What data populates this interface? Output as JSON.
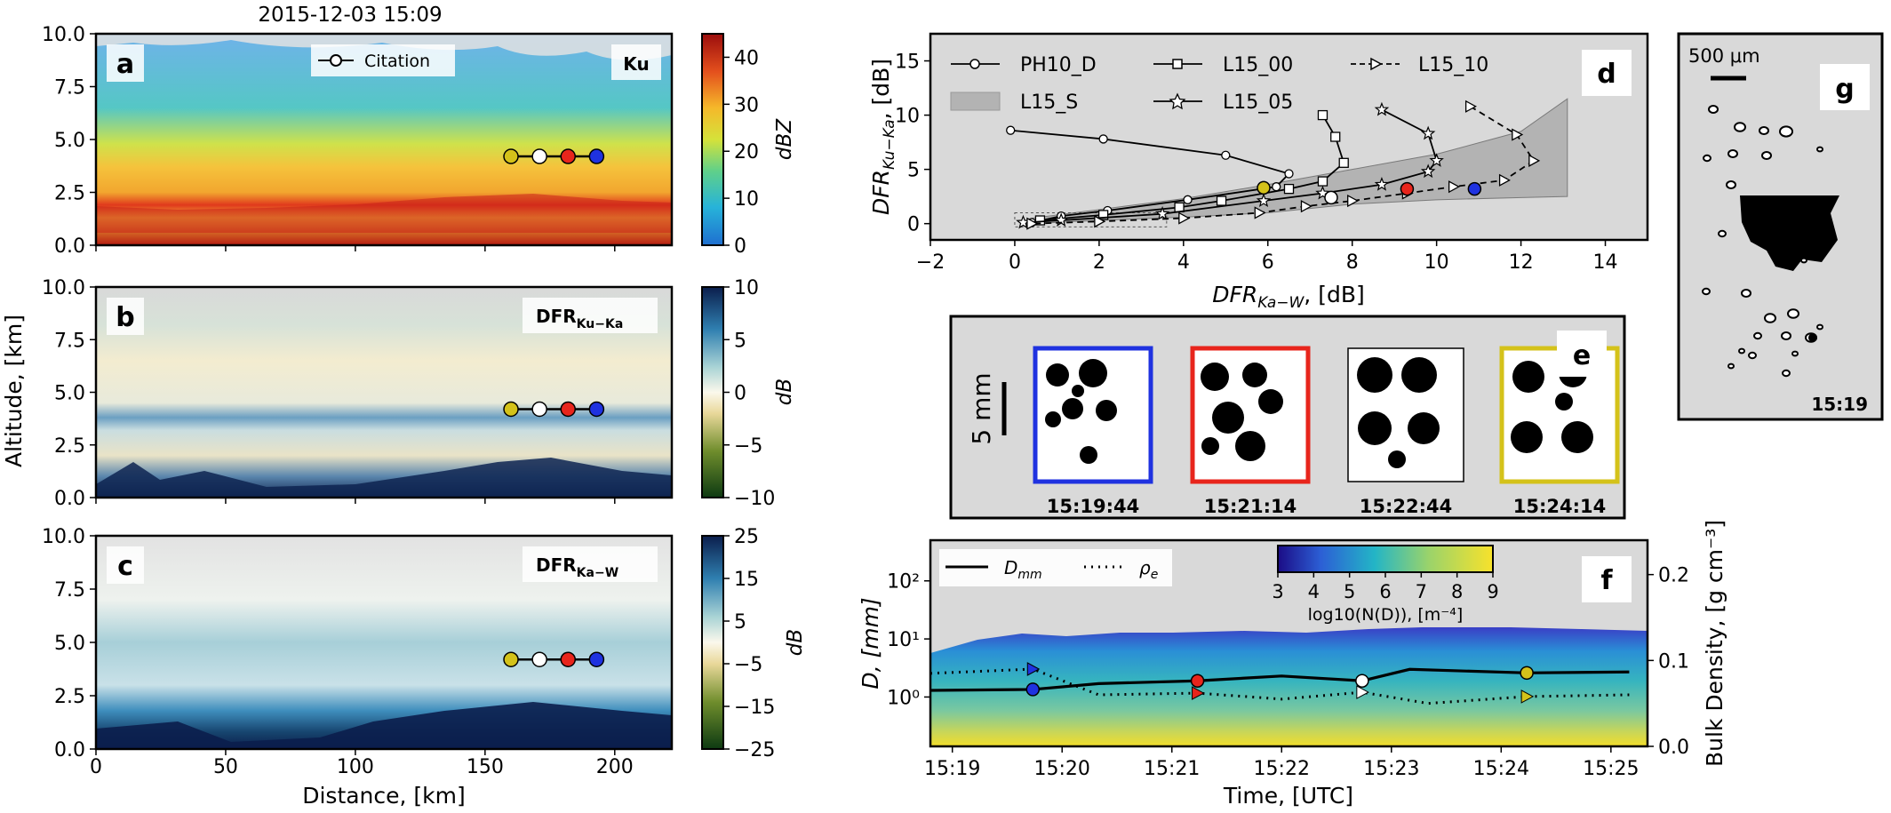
{
  "figure": {
    "title": "2015-12-03 15:09",
    "colors": {
      "yellow_marker": "#d4c21a",
      "white_marker": "#ffffff",
      "red_marker": "#e8251c",
      "blue_marker": "#1f32e0",
      "panel_gray": "#d9d9d9",
      "axis": "#000000"
    }
  },
  "chart_data": [
    {
      "panel": "a",
      "type": "heatmap",
      "label": "Ku",
      "legend": "Citation",
      "xlabel": "Distance, [km]",
      "ylabel": "Altitude, [km]",
      "xlim": [
        0,
        222
      ],
      "ylim": [
        0,
        10
      ],
      "x_ticks": [
        "0",
        "50",
        "100",
        "150",
        "200"
      ],
      "y_ticks": [
        "0.0",
        "2.5",
        "5.0",
        "7.5",
        "10.0"
      ],
      "colorbar": {
        "label": "dBZ",
        "range": [
          0,
          45
        ],
        "ticks": [
          "0",
          "10",
          "20",
          "30",
          "40"
        ],
        "colormap": "turbo"
      },
      "markers": [
        {
          "x": 160,
          "y": 4.2,
          "color": "yellow"
        },
        {
          "x": 171,
          "y": 4.2,
          "color": "white"
        },
        {
          "x": 182,
          "y": 4.2,
          "color": "red"
        },
        {
          "x": 193,
          "y": 4.2,
          "color": "blue"
        }
      ]
    },
    {
      "panel": "b",
      "type": "heatmap",
      "label": "DFR",
      "label_sub": "Ku−Ka",
      "xlim": [
        0,
        222
      ],
      "ylim": [
        0,
        10
      ],
      "y_ticks": [
        "0.0",
        "2.5",
        "5.0",
        "7.5",
        "10.0"
      ],
      "colorbar": {
        "label": "dB",
        "range": [
          -10,
          10
        ],
        "ticks": [
          "10",
          "5",
          "0",
          "−5",
          "−10"
        ],
        "colormap": "diverging"
      },
      "markers": [
        {
          "x": 160,
          "y": 4.2,
          "color": "yellow"
        },
        {
          "x": 171,
          "y": 4.2,
          "color": "white"
        },
        {
          "x": 182,
          "y": 4.2,
          "color": "red"
        },
        {
          "x": 193,
          "y": 4.2,
          "color": "blue"
        }
      ]
    },
    {
      "panel": "c",
      "type": "heatmap",
      "label": "DFR",
      "label_sub": "Ka−W",
      "xlim": [
        0,
        222
      ],
      "ylim": [
        0,
        10
      ],
      "y_ticks": [
        "0.0",
        "2.5",
        "5.0",
        "7.5",
        "10.0"
      ],
      "x_ticks": [
        "0",
        "50",
        "100",
        "150",
        "200"
      ],
      "colorbar": {
        "label": "dB",
        "range": [
          -25,
          25
        ],
        "ticks": [
          "25",
          "15",
          "5",
          "−5",
          "−15",
          "−25"
        ],
        "colormap": "diverging"
      },
      "markers": [
        {
          "x": 160,
          "y": 4.2,
          "color": "yellow"
        },
        {
          "x": 171,
          "y": 4.2,
          "color": "white"
        },
        {
          "x": 182,
          "y": 4.2,
          "color": "red"
        },
        {
          "x": 193,
          "y": 4.2,
          "color": "blue"
        }
      ]
    },
    {
      "panel": "d",
      "type": "line",
      "xlabel": "DFR",
      "xlabel_sub": "Ka−W",
      "xlabel_unit": ", [dB]",
      "ylabel": "DFR",
      "ylabel_sub": "Ku−Ka",
      "ylabel_unit": ", [dB]",
      "xlim": [
        -2,
        15
      ],
      "ylim": [
        -1.5,
        17.5
      ],
      "x_ticks": [
        -2,
        0,
        2,
        4,
        6,
        8,
        10,
        12,
        14
      ],
      "y_ticks": [
        0,
        5,
        10,
        15
      ],
      "x_tick_labels": [
        "−2",
        "0",
        "2",
        "4",
        "6",
        "8",
        "10",
        "12",
        "14"
      ],
      "y_tick_labels": [
        "0",
        "5",
        "10",
        "15"
      ],
      "shaded_series": {
        "name": "L15_S",
        "lower": [
          [
            0.4,
            0
          ],
          [
            2,
            0.3
          ],
          [
            4,
            0.6
          ],
          [
            6,
            1
          ],
          [
            8,
            1.8
          ],
          [
            10,
            2.2
          ],
          [
            12,
            2.4
          ],
          [
            13.1,
            2.5
          ]
        ],
        "upper": [
          [
            0.4,
            0.5
          ],
          [
            2,
            1.3
          ],
          [
            4,
            2.3
          ],
          [
            6,
            3.6
          ],
          [
            8,
            5
          ],
          [
            10,
            6.4
          ],
          [
            12,
            8.5
          ],
          [
            13.1,
            11.5
          ]
        ]
      },
      "series": [
        {
          "name": "PH10_D",
          "marker": "circle",
          "style": "solid",
          "points": [
            [
              -0.1,
              8.6
            ],
            [
              2.1,
              7.8
            ],
            [
              5.0,
              6.3
            ],
            [
              6.5,
              4.6
            ],
            [
              6.2,
              3.4
            ],
            [
              4.1,
              2.2
            ],
            [
              2.2,
              1.2
            ],
            [
              1.1,
              0.7
            ],
            [
              0.4,
              0.1
            ]
          ]
        },
        {
          "name": "L15_00",
          "marker": "square",
          "style": "solid",
          "points": [
            [
              7.3,
              10.0
            ],
            [
              7.6,
              8.0
            ],
            [
              7.8,
              5.6
            ],
            [
              7.3,
              3.9
            ],
            [
              6.5,
              3.2
            ],
            [
              4.9,
              2.1
            ],
            [
              3.9,
              1.5
            ],
            [
              2.1,
              0.8
            ],
            [
              0.6,
              0.3
            ]
          ]
        },
        {
          "name": "L15_05",
          "marker": "star",
          "style": "solid",
          "points": [
            [
              8.7,
              10.5
            ],
            [
              9.8,
              8.3
            ],
            [
              10.0,
              5.8
            ],
            [
              9.8,
              4.8
            ],
            [
              8.7,
              3.6
            ],
            [
              7.3,
              2.8
            ],
            [
              5.9,
              2.1
            ],
            [
              3.5,
              0.9
            ],
            [
              1.1,
              0.3
            ],
            [
              0.2,
              0.1
            ]
          ]
        },
        {
          "name": "L15_10",
          "marker": "triangle-right",
          "style": "dashed",
          "points": [
            [
              10.8,
              10.8
            ],
            [
              11.9,
              8.2
            ],
            [
              12.3,
              5.8
            ],
            [
              11.6,
              4.0
            ],
            [
              10.4,
              3.4
            ],
            [
              9.3,
              2.8
            ],
            [
              8.0,
              2.1
            ],
            [
              6.9,
              1.6
            ],
            [
              5.8,
              1.0
            ],
            [
              4.0,
              0.5
            ],
            [
              2.0,
              0.2
            ],
            [
              0.4,
              0.0
            ]
          ]
        }
      ],
      "markers": [
        {
          "x": 5.9,
          "y": 3.3,
          "color": "yellow"
        },
        {
          "x": 7.5,
          "y": 2.4,
          "color": "white"
        },
        {
          "x": 9.3,
          "y": 3.2,
          "color": "red"
        },
        {
          "x": 10.9,
          "y": 3.2,
          "color": "blue"
        }
      ]
    },
    {
      "panel": "f",
      "type": "heatmap",
      "xlabel": "Time, [UTC]",
      "ylabel": "D, [mm]",
      "ylabel2": "Bulk Density, [g cm⁻³]",
      "x_ticks": [
        "15:19",
        "15:20",
        "15:21",
        "15:22",
        "15:23",
        "15:24",
        "15:25"
      ],
      "y_scale": "log",
      "y_ticks": [
        "10⁰",
        "10¹",
        "10²"
      ],
      "y2_ticks": [
        "0.0",
        "0.1",
        "0.2"
      ],
      "colorbar": {
        "label": "log10(N(D)), [m⁻⁴]",
        "range": [
          3,
          9
        ],
        "ticks": [
          "3",
          "4",
          "5",
          "6",
          "7",
          "8",
          "9"
        ]
      },
      "series": [
        {
          "name": "D_mm",
          "label_main": "D",
          "label_sub": "mm",
          "style": "solid",
          "points": [
            [
              "15:18:48",
              1.3
            ],
            [
              "15:19:44",
              1.35
            ],
            [
              "15:20:20",
              1.7
            ],
            [
              "15:21:14",
              1.9
            ],
            [
              "15:22:00",
              2.3
            ],
            [
              "15:22:44",
              1.9
            ],
            [
              "15:23:10",
              3.0
            ],
            [
              "15:24:14",
              2.6
            ],
            [
              "15:25:10",
              2.7
            ]
          ]
        },
        {
          "name": "rho_e",
          "label_main": "ρ",
          "label_sub": "e",
          "style": "dotted",
          "points": [
            [
              "15:18:48",
              0.085
            ],
            [
              "15:19:44",
              0.09
            ],
            [
              "15:20:20",
              0.06
            ],
            [
              "15:21:14",
              0.062
            ],
            [
              "15:22:00",
              0.055
            ],
            [
              "15:22:44",
              0.063
            ],
            [
              "15:23:20",
              0.05
            ],
            [
              "15:24:14",
              0.058
            ],
            [
              "15:25:10",
              0.06
            ]
          ]
        }
      ],
      "markers": [
        {
          "time": "15:19:44",
          "color": "blue"
        },
        {
          "time": "15:21:14",
          "color": "red"
        },
        {
          "time": "15:22:44",
          "color": "white"
        },
        {
          "time": "15:24:14",
          "color": "yellow"
        }
      ]
    }
  ],
  "panel_e": {
    "scale_label": "5 mm",
    "images": [
      {
        "time": "15:19:44",
        "border": "blue"
      },
      {
        "time": "15:21:14",
        "border": "red"
      },
      {
        "time": "15:22:44",
        "border": "white"
      },
      {
        "time": "15:24:14",
        "border": "yellow"
      }
    ]
  },
  "panel_g": {
    "scale_label": "500 μm",
    "time": "15:19"
  },
  "panel_letters": [
    "a",
    "b",
    "c",
    "d",
    "e",
    "f",
    "g"
  ]
}
